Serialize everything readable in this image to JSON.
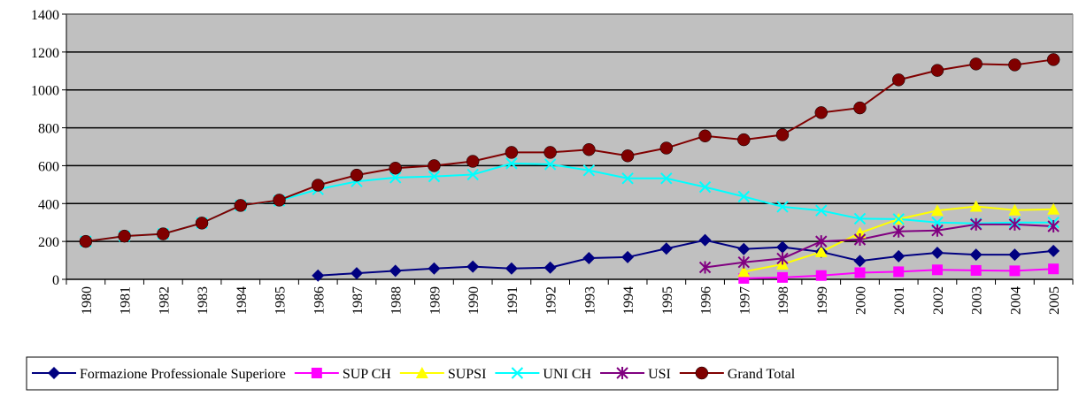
{
  "chart_data": {
    "type": "line",
    "categories": [
      "1980",
      "1981",
      "1982",
      "1983",
      "1984",
      "1985",
      "1986",
      "1987",
      "1988",
      "1989",
      "1990",
      "1991",
      "1992",
      "1993",
      "1994",
      "1995",
      "1996",
      "1997",
      "1998",
      "1999",
      "2000",
      "2001",
      "2002",
      "2003",
      "2004",
      "2005"
    ],
    "ylim": [
      0,
      1400
    ],
    "yticks": [
      0,
      200,
      400,
      600,
      800,
      1000,
      1200,
      1400
    ],
    "grid": true,
    "legend": "bottom",
    "series": [
      {
        "name": "Formazione Professionale Superiore",
        "color": "#000080",
        "marker": "diamond",
        "values": [
          null,
          null,
          null,
          null,
          null,
          null,
          20,
          32,
          45,
          57,
          67,
          57,
          62,
          112,
          117,
          162,
          207,
          160,
          170,
          145,
          97,
          122,
          140,
          130,
          130,
          150
        ]
      },
      {
        "name": "SUP CH",
        "color": "#ff00ff",
        "marker": "square",
        "values": [
          null,
          null,
          null,
          null,
          null,
          null,
          null,
          null,
          null,
          null,
          null,
          null,
          null,
          null,
          null,
          null,
          null,
          5,
          10,
          20,
          35,
          40,
          50,
          47,
          45,
          55
        ]
      },
      {
        "name": "SUPSI",
        "color": "#ffff00",
        "marker": "triangle",
        "values": [
          null,
          null,
          null,
          null,
          null,
          null,
          null,
          null,
          null,
          null,
          null,
          null,
          null,
          null,
          null,
          null,
          null,
          40,
          80,
          145,
          245,
          318,
          363,
          385,
          365,
          370
        ]
      },
      {
        "name": "UNI CH",
        "color": "#00ffff",
        "marker": "x",
        "values": [
          200,
          228,
          240,
          297,
          390,
          415,
          475,
          517,
          537,
          543,
          553,
          612,
          607,
          575,
          533,
          533,
          487,
          437,
          383,
          363,
          320,
          318,
          300,
          295,
          300,
          300
        ]
      },
      {
        "name": "USI",
        "color": "#800080",
        "marker": "star",
        "values": [
          null,
          null,
          null,
          null,
          null,
          null,
          null,
          null,
          null,
          null,
          null,
          null,
          null,
          null,
          null,
          null,
          63,
          90,
          110,
          200,
          210,
          253,
          258,
          290,
          290,
          280
        ]
      },
      {
        "name": "Grand Total",
        "color": "#800000",
        "marker": "circle",
        "values": [
          200,
          228,
          240,
          297,
          390,
          418,
          497,
          550,
          587,
          600,
          623,
          670,
          670,
          685,
          652,
          693,
          757,
          737,
          763,
          880,
          905,
          1053,
          1103,
          1137,
          1132,
          1160
        ]
      }
    ]
  }
}
